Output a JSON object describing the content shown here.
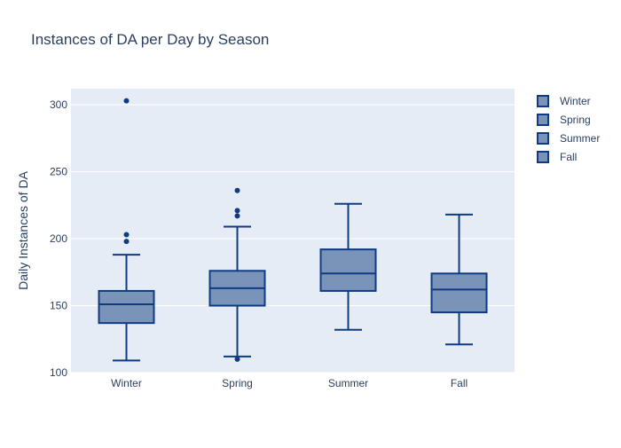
{
  "chart_data": {
    "type": "box",
    "title": "Instances of DA per Day by Season",
    "xlabel": "",
    "ylabel": "Daily Instances of DA",
    "ylim": [
      100,
      312
    ],
    "yticks": [
      100,
      150,
      200,
      250,
      300
    ],
    "grid": true,
    "legend_position": "top-right",
    "categories": [
      "Winter",
      "Spring",
      "Summer",
      "Fall"
    ],
    "series": [
      {
        "name": "Winter",
        "category": "Winter",
        "min": 109,
        "q1": 137,
        "median": 151,
        "q3": 161,
        "max": 188,
        "outliers": [
          198,
          203,
          303
        ]
      },
      {
        "name": "Spring",
        "category": "Spring",
        "min": 112,
        "q1": 150,
        "median": 163,
        "q3": 176,
        "max": 209,
        "outliers": [
          110,
          217,
          221,
          236
        ]
      },
      {
        "name": "Summer",
        "category": "Summer",
        "min": 132,
        "q1": 161,
        "median": 174,
        "q3": 192,
        "max": 226,
        "outliers": []
      },
      {
        "name": "Fall",
        "category": "Fall",
        "min": 121,
        "q1": 145,
        "median": 162,
        "q3": 174,
        "max": 218,
        "outliers": []
      }
    ],
    "colors": {
      "plot_background": "#e5ecf6",
      "grid": "#ffffff",
      "box_fill": "#7a93b9",
      "box_line": "#0f3b82",
      "text": "#2a3f5f"
    }
  }
}
